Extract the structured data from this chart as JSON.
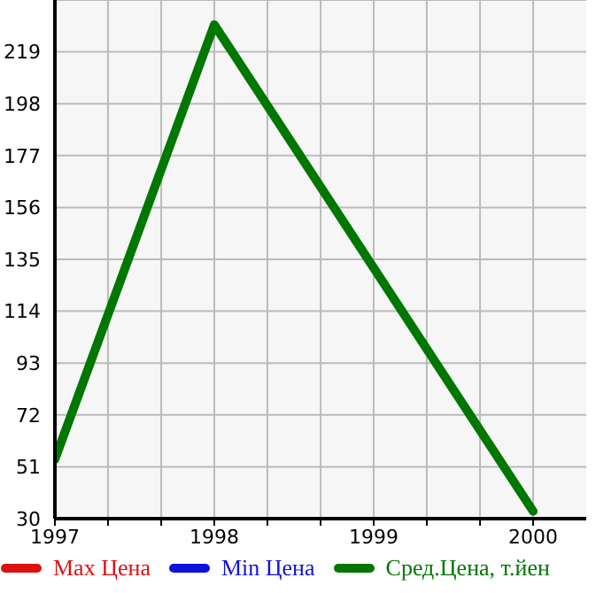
{
  "chart_data": {
    "type": "line",
    "x": [
      1997,
      1998,
      2000
    ],
    "series": [
      {
        "name": "Max Цена",
        "color": "#dd1111",
        "values": [
          null,
          null,
          null
        ]
      },
      {
        "name": "Min Цена",
        "color": "#1111dd",
        "values": [
          null,
          null,
          null
        ]
      },
      {
        "name": "Сред.Цена, т.йен",
        "color": "#007700",
        "values": [
          54,
          230,
          33
        ]
      }
    ],
    "xlim": [
      1997,
      2000.333
    ],
    "xticks": [
      1997,
      {
        "value": 1997.333,
        "label": null
      },
      {
        "value": 1997.667,
        "label": null
      },
      1998,
      {
        "value": 1998.333,
        "label": null
      },
      {
        "value": 1998.667,
        "label": null
      },
      1999,
      {
        "value": 1999.333,
        "label": null
      },
      {
        "value": 1999.667,
        "label": null
      },
      2000
    ],
    "ylim": [
      30,
      240
    ],
    "yticks": [
      30,
      51,
      72,
      93,
      114,
      135,
      156,
      177,
      198,
      219,
      {
        "value": 240,
        "label": null
      }
    ],
    "grid": true,
    "legend": "bottom",
    "marker": "none",
    "line_style": "solid"
  }
}
